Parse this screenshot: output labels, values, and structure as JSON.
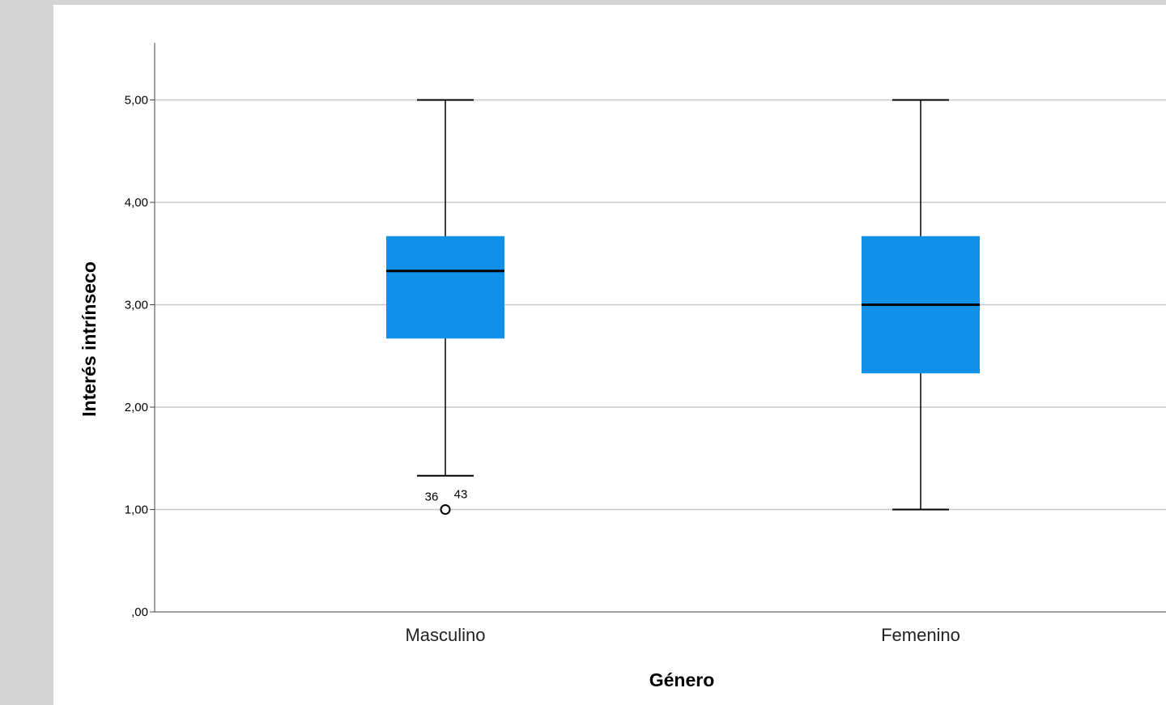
{
  "chart_data": {
    "type": "boxplot",
    "title": "",
    "xlabel": "Género",
    "ylabel": "Interés intrínseco",
    "ylim": [
      0,
      5.5
    ],
    "ticks": [
      {
        "value": 0,
        "label": ",00"
      },
      {
        "value": 1,
        "label": "1,00"
      },
      {
        "value": 2,
        "label": "2,00"
      },
      {
        "value": 3,
        "label": "3,00"
      },
      {
        "value": 4,
        "label": "4,00"
      },
      {
        "value": 5,
        "label": "5,00"
      }
    ],
    "grid": true,
    "box_color": "#1190e7",
    "categories": [
      "Masculino",
      "Femenino"
    ],
    "boxes": [
      {
        "category": "Masculino",
        "whisker_low": 1.33,
        "q1": 2.67,
        "median": 3.33,
        "q3": 3.67,
        "whisker_high": 5.0,
        "outliers": [
          {
            "value": 1.0,
            "labels": [
              "36",
              "43"
            ]
          }
        ]
      },
      {
        "category": "Femenino",
        "whisker_low": 1.0,
        "q1": 2.33,
        "median": 3.0,
        "q3": 3.67,
        "whisker_high": 5.0,
        "outliers": []
      }
    ]
  }
}
